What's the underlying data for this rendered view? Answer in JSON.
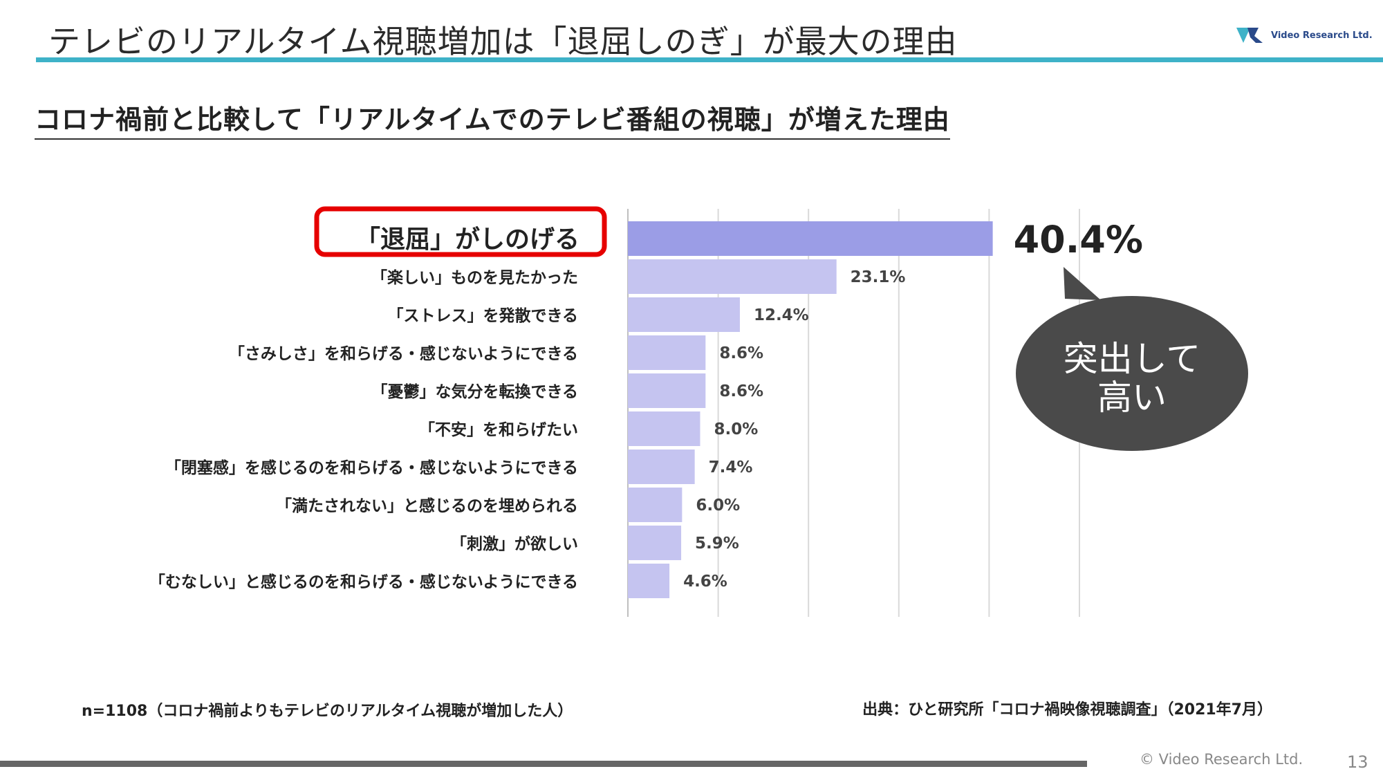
{
  "slide": {
    "title": "テレビのリアルタイム視聴増加は「退屈しのぎ」が最大の理由",
    "subtitle": "コロナ禍前と比較して「リアルタイムでのテレビ番組の視聴」が増えた理由",
    "logo_text": "Video Research Ltd.",
    "sample_note": "n=1108（コロナ禍前よりもテレビのリアルタイム視聴が増加した人）",
    "source_note": "出典：ひと研究所「コロナ禍映像視聴調査」（2021年7月）",
    "copyright": "© Video Research Ltd.",
    "page_number": "13",
    "callout_line1": "突出して",
    "callout_line2": "高い"
  },
  "colors": {
    "accent_rule": "#3eb2c8",
    "top_bar": "#9b9de6",
    "bar": "#c5c4f0",
    "highlight_box": "#e60000",
    "callout": "#4a4a4a"
  },
  "chart_data": {
    "type": "bar",
    "orientation": "horizontal",
    "categories": [
      "「退屈」がしのげる",
      "「楽しい」ものを見たかった",
      "「ストレス」を発散できる",
      "「さみしさ」を和らげる・感じないようにできる",
      "「憂鬱」な気分を転換できる",
      "「不安」を和らげたい",
      "「閉塞感」を感じるのを和らげる・感じないようにできる",
      "「満たされない」と感じるのを埋められる",
      "「刺激」が欲しい",
      "「むなしい」と感じるのを和らげる・感じないようにできる"
    ],
    "values": [
      40.4,
      23.1,
      12.4,
      8.6,
      8.6,
      8.0,
      7.4,
      6.0,
      5.9,
      4.6
    ],
    "value_labels": [
      "40.4%",
      "23.1%",
      "12.4%",
      "8.6%",
      "8.6%",
      "8.0%",
      "7.4%",
      "6.0%",
      "5.9%",
      "4.6%"
    ],
    "highlighted_index": 0,
    "xlim": [
      0,
      50
    ],
    "gridlines": [
      0,
      10,
      20,
      30,
      40,
      50
    ],
    "grid": true,
    "unit": "%"
  }
}
